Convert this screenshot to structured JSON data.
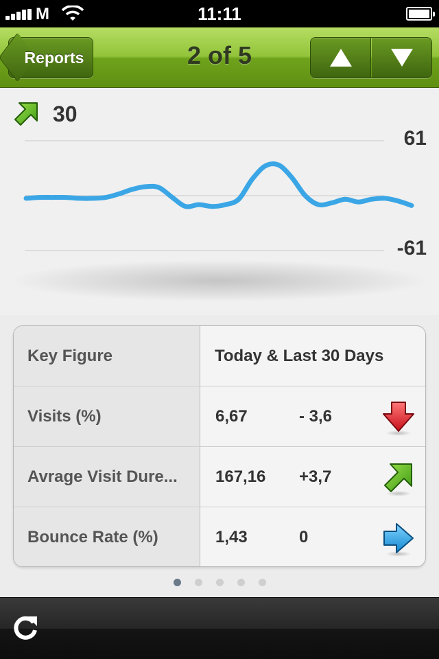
{
  "status_bar": {
    "carrier": "M",
    "time": "11:11",
    "icons": [
      "signal-bars-icon",
      "wifi-icon",
      "battery-icon"
    ]
  },
  "nav": {
    "back_label": "Reports",
    "title": "2 of 5",
    "prev_icon": "up-arrow-icon",
    "next_icon": "down-arrow-icon"
  },
  "trend": {
    "icon": "trend-up-arrow-icon",
    "value": "30"
  },
  "chart_data": {
    "type": "line",
    "y_max_label": "61",
    "y_min_label": "-61",
    "ylim": [
      -61,
      61
    ],
    "x": [
      1,
      2,
      3,
      4,
      5,
      6,
      7,
      8,
      9,
      10,
      11,
      12,
      13,
      14,
      15,
      16,
      17,
      18,
      19,
      20,
      21,
      22,
      23,
      24,
      25,
      26,
      27,
      28,
      29,
      30
    ],
    "values": [
      -3,
      -2,
      -2,
      -2,
      -3,
      -3,
      -2,
      2,
      7,
      10,
      9,
      -2,
      -12,
      -10,
      -12,
      -10,
      -4,
      18,
      33,
      34,
      20,
      0,
      -10,
      -8,
      -4,
      -7,
      -4,
      -3,
      -6,
      -11
    ],
    "color": "#3ba6e6",
    "grid": true
  },
  "table": {
    "header": {
      "key": "Key Figure",
      "value": "Today & Last 30 Days"
    },
    "rows": [
      {
        "key": "Visits (%)",
        "value": "6,67",
        "change": "- 3,6",
        "icon": "red-down-arrow-icon"
      },
      {
        "key": "Avrage Visit Dure...",
        "value": "167,16",
        "change": "+3,7",
        "icon": "green-up-arrow-icon"
      },
      {
        "key": "Bounce Rate (%)",
        "value": "1,43",
        "change": "0",
        "icon": "blue-right-arrow-icon"
      }
    ]
  },
  "pagination": {
    "pages": 5,
    "current": 1
  },
  "toolbar": {
    "refresh_icon": "refresh-icon"
  },
  "colors": {
    "nav_green": "#8cbf35",
    "line_blue": "#3ba6e6",
    "down_red": "#e0303a",
    "up_green": "#6cc229",
    "neutral_blue": "#2aa7e6"
  }
}
